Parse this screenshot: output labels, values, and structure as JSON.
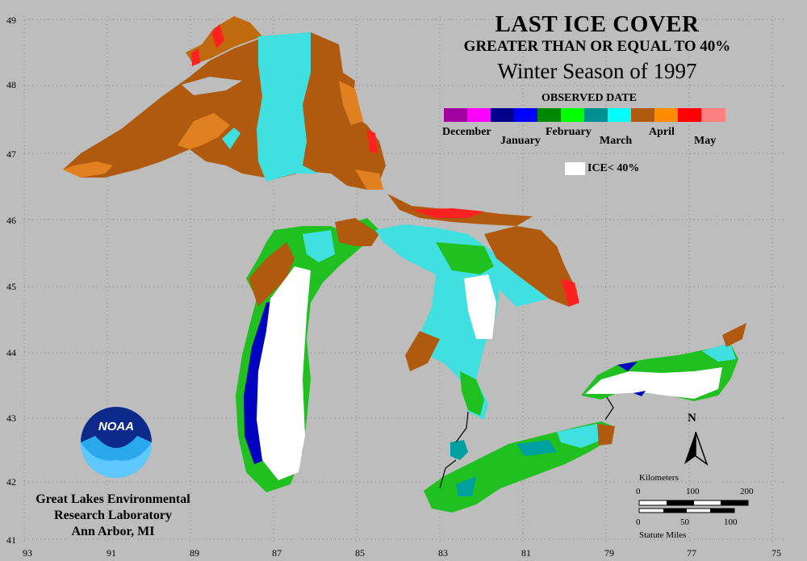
{
  "title": {
    "line1": "LAST ICE COVER",
    "line2": "GREATER THAN OR EQUAL TO 40%",
    "line3": "Winter Season of 1997"
  },
  "legend": {
    "heading": "OBSERVED DATE",
    "months": [
      {
        "label": "December",
        "colors": [
          "#a000a0",
          "#ff00ff"
        ]
      },
      {
        "label": "January",
        "colors": [
          "#00008c",
          "#0000ff"
        ]
      },
      {
        "label": "February",
        "colors": [
          "#008800",
          "#00ff00"
        ]
      },
      {
        "label": "March",
        "colors": [
          "#009090",
          "#00ffff"
        ]
      },
      {
        "label": "April",
        "colors": [
          "#b05a10",
          "#ff8c00"
        ]
      },
      {
        "label": "May",
        "colors": [
          "#ff0000",
          "#ff8080"
        ]
      }
    ],
    "ice_label": "ICE< 40%"
  },
  "grid": {
    "longitudes": [
      "93",
      "91",
      "89",
      "87",
      "85",
      "83",
      "81",
      "79",
      "77",
      "75"
    ],
    "latitudes": [
      "49",
      "48",
      "47",
      "46",
      "45",
      "44",
      "43",
      "42",
      "41"
    ]
  },
  "colors": {
    "background": "#bdbdbd",
    "april_brown": "#b05a10",
    "april_orange": "#e08020",
    "march_cyan": "#40e0e0",
    "march_teal": "#00a0a0",
    "feb_green": "#20c020",
    "feb_lime": "#00ff00",
    "jan_blue": "#0000c0",
    "may_red": "#ff2020",
    "ice_white": "#ffffff"
  },
  "institution": {
    "logo_text": "NOAA",
    "line1": "Great Lakes Environmental",
    "line2": "Research Laboratory",
    "line3": "Ann Arbor, MI"
  },
  "scale": {
    "km_label": "Kilometers",
    "km_ticks": [
      "0",
      "100",
      "200"
    ],
    "mi_ticks": [
      "0",
      "50",
      "100"
    ],
    "mi_label": "Statute Miles"
  },
  "north": "N"
}
